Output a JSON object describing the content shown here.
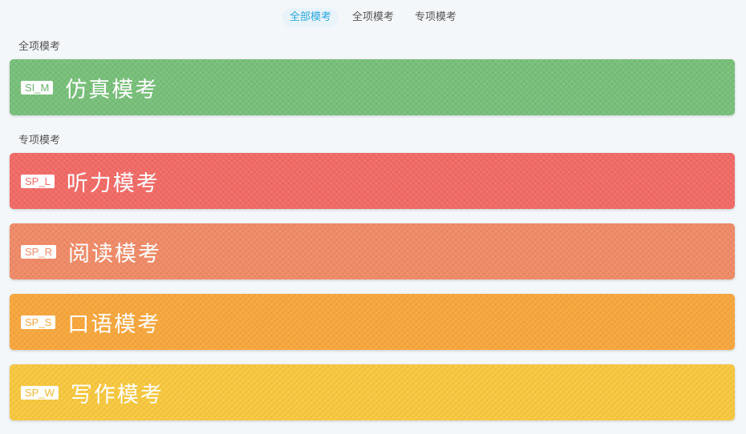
{
  "tabs": [
    {
      "label": "全部模考",
      "active": true
    },
    {
      "label": "全项模考",
      "active": false
    },
    {
      "label": "专项模考",
      "active": false
    }
  ],
  "sections": {
    "full": {
      "label": "全项模考"
    },
    "special": {
      "label": "专项模考"
    }
  },
  "cards": [
    {
      "badge": "SI_M",
      "title": "仿真模考",
      "color": "#78c07a",
      "badge_color": "#6cb46e"
    },
    {
      "badge": "SP_L",
      "title": "听力模考",
      "color": "#f26a66",
      "badge_color": "#f26a66"
    },
    {
      "badge": "SP_R",
      "title": "阅读模考",
      "color": "#f08a67",
      "badge_color": "#f08a67"
    },
    {
      "badge": "SP_S",
      "title": "口语模考",
      "color": "#f8a73c",
      "badge_color": "#f8a73c"
    },
    {
      "badge": "SP_W",
      "title": "写作模考",
      "color": "#f8c83e",
      "badge_color": "#f0b82c"
    }
  ]
}
